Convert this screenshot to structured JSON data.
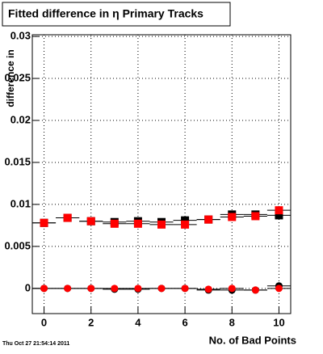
{
  "chart_data": {
    "type": "scatter",
    "title": "Fitted difference in  η Primary Tracks",
    "ylabel": "difference in",
    "xlabel": "No. of Bad Points",
    "footer": "Thu Oct 27 21:54:14 2011",
    "x": [
      0,
      1,
      2,
      3,
      4,
      5,
      6,
      7,
      8,
      9,
      10
    ],
    "series": [
      {
        "color": "#000000",
        "marker": "square",
        "values": [
          0.0078,
          0.0084,
          0.008,
          0.0079,
          0.008,
          0.0079,
          0.0081,
          0.0082,
          0.0088,
          0.0088,
          0.0087
        ]
      },
      {
        "color": "#ff0000",
        "marker": "square",
        "values": [
          0.0078,
          0.0084,
          0.008,
          0.0077,
          0.0077,
          0.0076,
          0.0076,
          0.0082,
          0.0085,
          0.0086,
          0.0093
        ]
      },
      {
        "color": "#000000",
        "marker": "circle",
        "values": [
          0,
          0,
          0,
          -0.0001,
          -0.0001,
          0,
          0,
          -0.0002,
          -0.0002,
          -0.0002,
          0.0003
        ]
      },
      {
        "color": "#ff0000",
        "marker": "circle",
        "values": [
          0,
          0,
          0,
          0,
          0,
          0,
          0,
          -0.0001,
          0,
          -0.0002,
          0
        ]
      }
    ],
    "xlim": [
      -0.5,
      10.5
    ],
    "ylim": [
      -0.003,
      0.0302
    ],
    "xticks": [
      0,
      2,
      4,
      6,
      8,
      10
    ],
    "yticks": [
      0,
      0.005,
      0.01,
      0.015,
      0.02,
      0.025,
      0.03
    ],
    "grid": true
  }
}
